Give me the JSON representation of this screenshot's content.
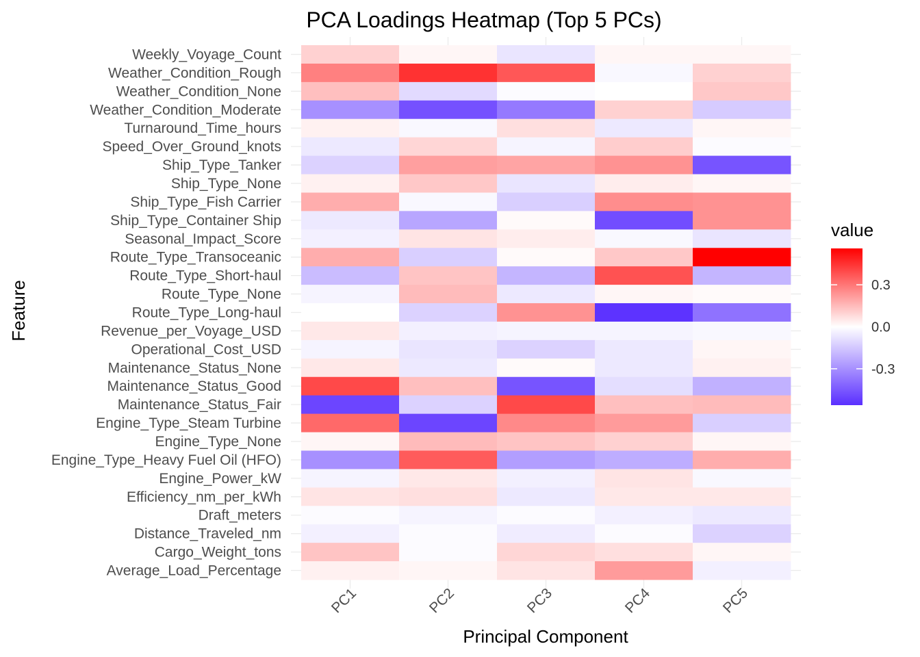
{
  "chart_data": {
    "type": "heatmap",
    "title": "PCA Loadings Heatmap (Top 5 PCs)",
    "xlabel": "Principal Component",
    "ylabel": "Feature",
    "x_categories": [
      "PC1",
      "PC2",
      "PC3",
      "PC4",
      "PC5"
    ],
    "y_categories": [
      "Weekly_Voyage_Count",
      "Weather_Condition_Rough",
      "Weather_Condition_None",
      "Weather_Condition_Moderate",
      "Turnaround_Time_hours",
      "Speed_Over_Ground_knots",
      "Ship_Type_Tanker",
      "Ship_Type_None",
      "Ship_Type_Fish Carrier",
      "Ship_Type_Container Ship",
      "Seasonal_Impact_Score",
      "Route_Type_Transoceanic",
      "Route_Type_Short-haul",
      "Route_Type_None",
      "Route_Type_Long-haul",
      "Revenue_per_Voyage_USD",
      "Operational_Cost_USD",
      "Maintenance_Status_None",
      "Maintenance_Status_Good",
      "Maintenance_Status_Fair",
      "Engine_Type_Steam Turbine",
      "Engine_Type_None",
      "Engine_Type_Heavy Fuel Oil (HFO)",
      "Engine_Power_kW",
      "Efficiency_nm_per_kWh",
      "Draft_meters",
      "Distance_Traveled_nm",
      "Cargo_Weight_tons",
      "Average_Load_Percentage"
    ],
    "values": [
      [
        0.1,
        0.02,
        -0.07,
        0.02,
        0.02
      ],
      [
        0.28,
        0.45,
        0.37,
        -0.02,
        0.1
      ],
      [
        0.14,
        -0.1,
        -0.01,
        0.0,
        0.12
      ],
      [
        -0.3,
        -0.47,
        -0.36,
        0.1,
        -0.14
      ],
      [
        0.03,
        -0.02,
        0.07,
        -0.06,
        0.02
      ],
      [
        -0.06,
        0.09,
        -0.03,
        0.11,
        -0.01
      ],
      [
        -0.12,
        0.21,
        0.2,
        0.24,
        -0.46
      ],
      [
        0.03,
        0.12,
        -0.07,
        0.04,
        0.02
      ],
      [
        0.18,
        -0.02,
        -0.13,
        0.25,
        0.24
      ],
      [
        -0.06,
        -0.24,
        0.01,
        -0.48,
        0.24
      ],
      [
        -0.04,
        0.06,
        0.04,
        -0.02,
        -0.07
      ],
      [
        0.18,
        -0.13,
        0.01,
        0.12,
        0.56
      ],
      [
        -0.18,
        0.13,
        -0.2,
        0.38,
        -0.2
      ],
      [
        -0.03,
        0.15,
        -0.06,
        0.02,
        0.01
      ],
      [
        0.0,
        -0.12,
        0.24,
        -0.55,
        -0.38
      ],
      [
        0.05,
        -0.04,
        -0.03,
        -0.03,
        -0.02
      ],
      [
        -0.03,
        -0.07,
        -0.12,
        -0.06,
        0.02
      ],
      [
        0.05,
        -0.06,
        0.01,
        -0.06,
        0.03
      ],
      [
        0.4,
        0.14,
        -0.46,
        -0.09,
        -0.21
      ],
      [
        -0.5,
        -0.12,
        0.4,
        0.14,
        0.15
      ],
      [
        0.33,
        -0.5,
        0.26,
        0.22,
        -0.13
      ],
      [
        0.02,
        0.15,
        0.13,
        0.1,
        0.02
      ],
      [
        -0.3,
        0.36,
        -0.26,
        -0.22,
        0.18
      ],
      [
        -0.03,
        0.05,
        -0.04,
        0.06,
        -0.02
      ],
      [
        0.06,
        0.07,
        -0.06,
        0.05,
        0.05
      ],
      [
        -0.01,
        -0.03,
        -0.01,
        -0.04,
        -0.06
      ],
      [
        -0.04,
        -0.01,
        -0.05,
        -0.01,
        -0.12
      ],
      [
        0.13,
        -0.01,
        0.09,
        0.07,
        0.02
      ],
      [
        0.03,
        0.02,
        0.06,
        0.22,
        -0.04
      ]
    ],
    "colorscale": {
      "low": "#5a2fff",
      "mid": "#ffffff",
      "high": "#ff0000",
      "limits": [
        -0.56,
        0.56
      ]
    },
    "legend": {
      "title": "value",
      "ticks": [
        0.3,
        0.0,
        -0.3
      ],
      "tick_labels": [
        "0.3",
        "0.0",
        "-0.3"
      ],
      "placement": "right"
    },
    "grid": true
  }
}
